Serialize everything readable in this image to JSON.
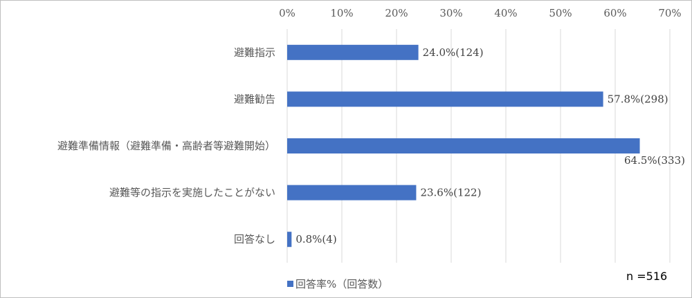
{
  "chart_data": {
    "type": "bar",
    "orientation": "horizontal",
    "categories": [
      "避難指示",
      "避難勧告",
      "避難準備情報（避難準備・高齢者等避難開始）",
      "避難等の指示を実施したことがない",
      "回答なし"
    ],
    "series": [
      {
        "name": "回答率%（回答数）",
        "values": [
          24.0,
          57.8,
          64.5,
          23.6,
          0.8
        ],
        "data_labels": [
          "24.0%(124)",
          "57.8%(298)",
          "64.5%(333)",
          "23.6%(122)",
          "0.8%(4)"
        ]
      }
    ],
    "xlim": [
      0,
      70
    ],
    "x_ticks": [
      "0%",
      "10%",
      "20%",
      "30%",
      "40%",
      "50%",
      "60%",
      "70%"
    ],
    "x_axis_position": "top",
    "grid": true,
    "legend_position": "bottom-left",
    "bar_color": "#4472C4",
    "grid_color": "#D9D9D9"
  },
  "annotation": "n =516"
}
